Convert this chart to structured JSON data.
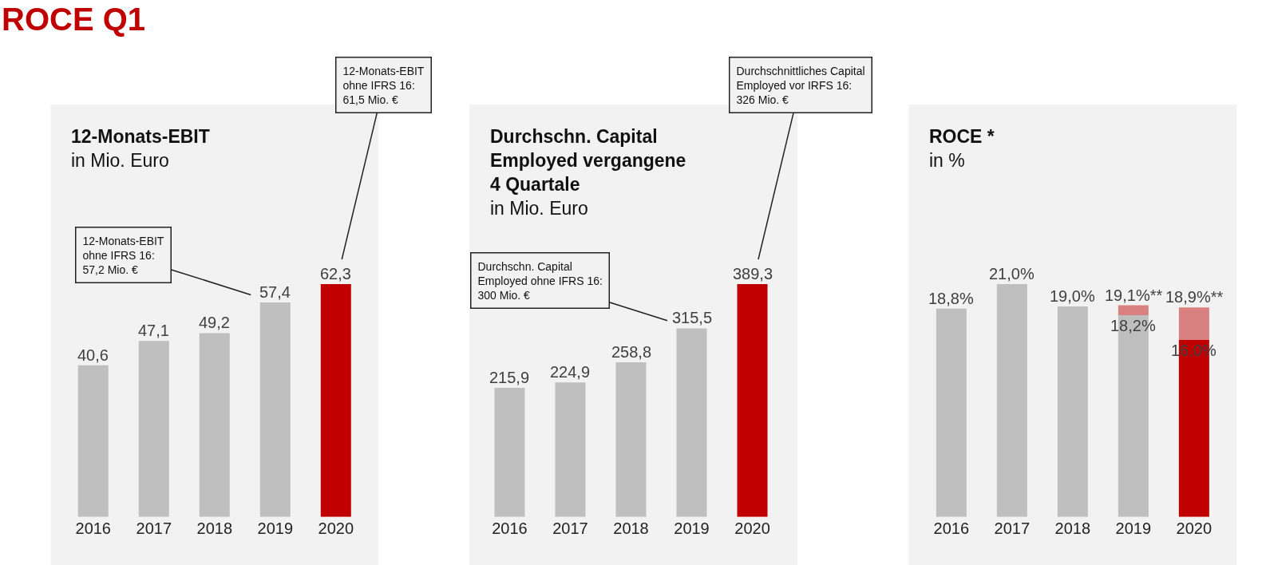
{
  "chart_data": [
    {
      "type": "bar",
      "title": "12-Monats-EBIT",
      "subtitle": "in Mio. Euro",
      "categories": [
        "2016",
        "2017",
        "2018",
        "2019",
        "2020"
      ],
      "tick_labels": "x",
      "grid": false,
      "series": [
        {
          "colors": [
            "#bfbfbf",
            "#bfbfbf",
            "#bfbfbf",
            "#bfbfbf",
            "#c00000"
          ],
          "values": [
            40.6,
            47.1,
            49.2,
            57.4,
            62.3
          ],
          "value_labels": [
            "40,6",
            "47,1",
            "49,2",
            "57,4",
            "62,3"
          ]
        }
      ],
      "annotations": [
        "ROCE Q1",
        {
          "text": "12-Monats-EBIT\nohne IFRS 16:\n57,2 Mio. €",
          "x": "2019",
          "y": 57.4
        },
        {
          "text": "12-Monats-EBIT\nohne IFRS 16:\n61,5 Mio. €",
          "x": "2020",
          "y": 62.3
        }
      ]
    },
    {
      "type": "bar",
      "title": "Durchschn. Capital\nEmployed vergangene\n4 Quartale",
      "subtitle": "in Mio. Euro",
      "categories": [
        "2016",
        "2017",
        "2018",
        "2019",
        "2020"
      ],
      "tick_labels": "x",
      "grid": false,
      "series": [
        {
          "colors": [
            "#bfbfbf",
            "#bfbfbf",
            "#bfbfbf",
            "#bfbfbf",
            "#c00000"
          ],
          "values": [
            215.9,
            224.9,
            258.8,
            315.5,
            389.3
          ],
          "value_labels": [
            "215,9",
            "224,9",
            "258,8",
            "315,5",
            "389,3"
          ]
        }
      ],
      "annotations": [
        {
          "text": "Durchschn. Capital\nEmployed ohne IFRS 16:\n300 Mio. €",
          "x": "2019",
          "y": 315.5
        },
        {
          "text": "Durchschnittliches Capital\nEmployed vor IRFS 16:\n326 Mio. €",
          "x": "2020",
          "y": 389.3
        }
      ]
    },
    {
      "type": "bar",
      "title": "ROCE *",
      "subtitle": "in %",
      "categories": [
        "2016",
        "2017",
        "2018",
        "2019",
        "2020"
      ],
      "tick_labels": "x",
      "grid": false,
      "stacked": true,
      "totals": [
        null,
        null,
        null,
        "19,1%**",
        "18,9%**"
      ],
      "series": [
        {
          "colors": [
            "#bfbfbf",
            "#bfbfbf",
            "#bfbfbf",
            "#bfbfbf",
            "#c00000"
          ],
          "values": [
            18.8,
            21.0,
            19.0,
            18.2,
            16.0
          ],
          "value_labels": [
            "18,8%",
            "21,0%",
            "19,0%",
            "18,2%",
            "16,0%"
          ]
        },
        {
          "color": "#d98080",
          "values": [
            null,
            null,
            null,
            0.9,
            2.9
          ]
        }
      ]
    }
  ]
}
